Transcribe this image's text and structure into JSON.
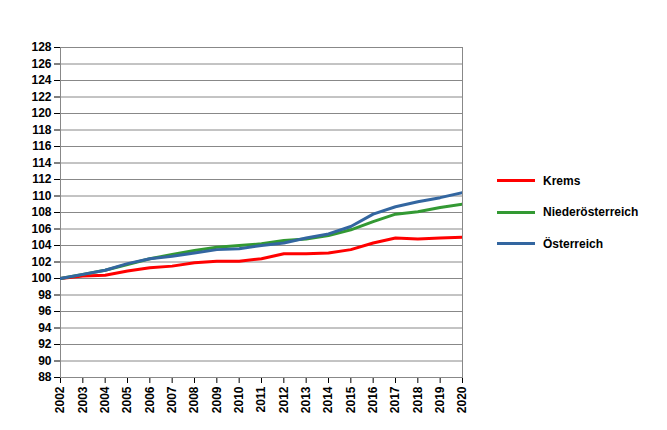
{
  "chart_data": {
    "type": "line",
    "x": [
      2002,
      2003,
      2004,
      2005,
      2006,
      2007,
      2008,
      2009,
      2010,
      2011,
      2012,
      2013,
      2014,
      2015,
      2016,
      2017,
      2018,
      2019,
      2020
    ],
    "series": [
      {
        "name": "Krems",
        "color": "#ff0000",
        "values": [
          100,
          100.3,
          100.4,
          100.9,
          101.3,
          101.5,
          101.9,
          102.1,
          102.1,
          102.4,
          103.0,
          103.0,
          103.1,
          103.5,
          104.3,
          104.9,
          104.8,
          104.9,
          105.0
        ]
      },
      {
        "name": "Niederösterreich",
        "color": "#339933",
        "values": [
          100,
          100.5,
          101.0,
          101.7,
          102.4,
          102.9,
          103.4,
          103.8,
          104.0,
          104.2,
          104.6,
          104.8,
          105.2,
          105.9,
          106.9,
          107.8,
          108.1,
          108.6,
          109.0
        ]
      },
      {
        "name": "Österreich",
        "color": "#3366a0",
        "values": [
          100,
          100.5,
          101.0,
          101.8,
          102.4,
          102.7,
          103.1,
          103.5,
          103.6,
          104.0,
          104.3,
          104.9,
          105.4,
          106.3,
          107.8,
          108.7,
          109.3,
          109.8,
          110.4
        ]
      }
    ],
    "xlim": [
      2002,
      2020
    ],
    "xticks": [
      2002,
      2003,
      2004,
      2005,
      2006,
      2007,
      2008,
      2009,
      2010,
      2011,
      2012,
      2013,
      2014,
      2015,
      2016,
      2017,
      2018,
      2019,
      2020
    ],
    "ylim": [
      88,
      128
    ],
    "yticks": [
      88,
      90,
      92,
      94,
      96,
      98,
      100,
      102,
      104,
      106,
      108,
      110,
      112,
      114,
      116,
      118,
      120,
      122,
      124,
      126,
      128
    ],
    "grid": true,
    "legend": "right"
  }
}
